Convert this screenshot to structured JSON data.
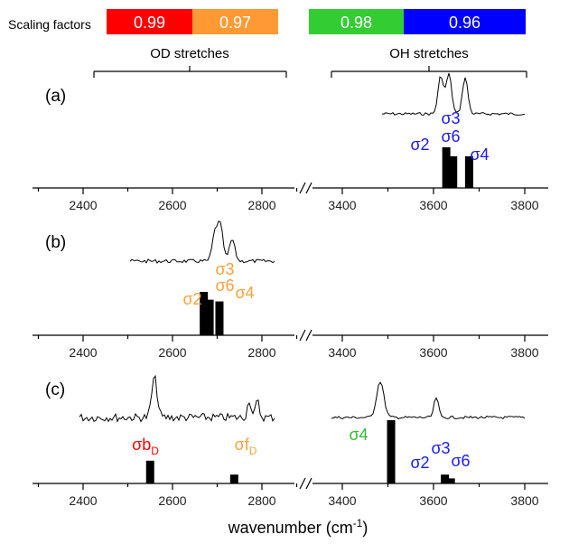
{
  "header": {
    "scaling_label": "Scaling factors",
    "od_label": "OD stretches",
    "oh_label": "OH stretches",
    "boxes": [
      {
        "value": "0.99",
        "color": "#ff0000"
      },
      {
        "value": "0.97",
        "color": "#ff9933"
      },
      {
        "value": "0.98",
        "color": "#33cc33"
      },
      {
        "value": "0.96",
        "color": "#0000ff"
      }
    ]
  },
  "xlabel_main": "wavenumber (cm",
  "xlabel_sup": "-1",
  "xlabel_close": ")",
  "colors": {
    "red": "#ff0000",
    "orange": "#f7a23c",
    "green": "#33bb33",
    "blue": "#1a1aff"
  },
  "chart_data": [
    {
      "panel": "(a)",
      "type": "bar",
      "x_breaks": [
        [
          2300,
          2850
        ],
        [
          3300,
          3850
        ]
      ],
      "tick_labels_left": [
        "2400",
        "2600",
        "2800"
      ],
      "tick_labels_right": [
        "3400",
        "3600",
        "3800"
      ],
      "bars": [
        {
          "x": 3628,
          "height": 0.9
        },
        {
          "x": 3643,
          "height": 0.7
        },
        {
          "x": 3678,
          "height": 0.7
        }
      ],
      "labels": [
        {
          "text": "σ3",
          "color": "blue"
        },
        {
          "text": "σ6",
          "color": "blue"
        },
        {
          "text": "σ2",
          "color": "blue"
        },
        {
          "text": "σ4",
          "color": "blue"
        }
      ]
    },
    {
      "panel": "(b)",
      "type": "bar",
      "tick_labels_left": [
        "2400",
        "2600",
        "2800"
      ],
      "tick_labels_right": [
        "3400",
        "3600",
        "3800"
      ],
      "bars": [
        {
          "x": 2670,
          "height": 1.0
        },
        {
          "x": 2683,
          "height": 0.82
        },
        {
          "x": 2705,
          "height": 0.78
        }
      ],
      "labels": [
        {
          "text": "σ3",
          "color": "orange"
        },
        {
          "text": "σ6",
          "color": "orange"
        },
        {
          "text": "σ2",
          "color": "orange"
        },
        {
          "text": "σ4",
          "color": "orange"
        }
      ]
    },
    {
      "panel": "(c)",
      "type": "bar",
      "tick_labels_left": [
        "2400",
        "2600",
        "2800"
      ],
      "tick_labels_right": [
        "3400",
        "3600",
        "3800"
      ],
      "bars": [
        {
          "x": 2550,
          "height": 0.36
        },
        {
          "x": 2738,
          "height": 0.14
        },
        {
          "x": 3507,
          "height": 1.0
        },
        {
          "x": 3625,
          "height": 0.14
        },
        {
          "x": 3638,
          "height": 0.08
        }
      ],
      "labels": [
        {
          "text": "σb",
          "sub": "D",
          "color": "red"
        },
        {
          "text": "σf",
          "sub": "D",
          "color": "orange"
        },
        {
          "text": "σ4",
          "color": "green"
        },
        {
          "text": "σ3",
          "color": "blue"
        },
        {
          "text": "σ2",
          "color": "blue"
        },
        {
          "text": "σ6",
          "color": "blue"
        }
      ]
    }
  ]
}
